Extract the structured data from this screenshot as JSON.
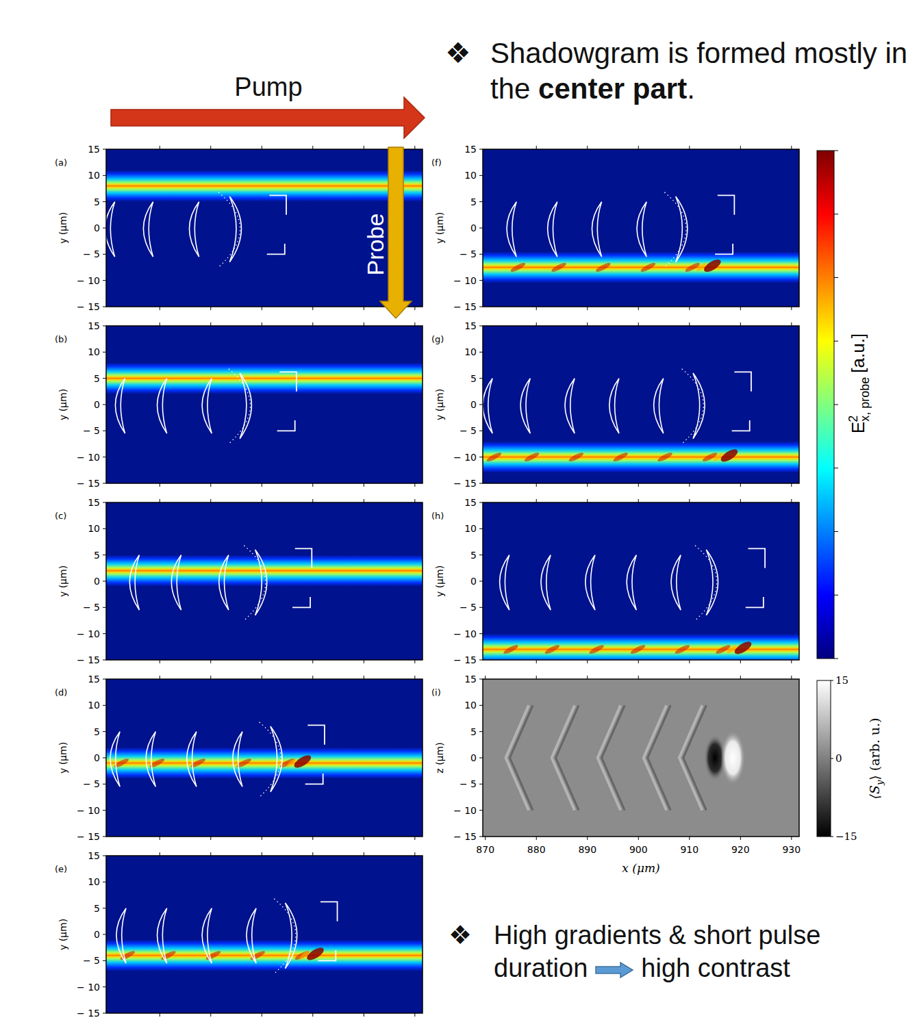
{
  "header": {
    "pump": "Pump",
    "probe": "Probe",
    "bullet": "❖",
    "note_top": {
      "text": "Shadowgram is formed mostly in the ",
      "bold": "center part",
      "end": "."
    },
    "note_bottom": {
      "text": "High gradients & short pulse duration",
      "result": "high contrast"
    }
  },
  "colorbar": {
    "symbol": "E",
    "subscript": "x",
    "superscript": "2",
    "suffix": ", probe",
    "unit": "[a.u.]"
  },
  "chart_data": [
    {
      "type": "heatmap",
      "panel_label": "(a)",
      "y_label": "y (μm)",
      "xlim": [
        869.5,
        931.5
      ],
      "ylim": [
        -15,
        15
      ],
      "xticks": [
        880,
        890,
        900,
        910,
        920,
        930
      ],
      "yticks": [
        {
          "value": -15,
          "label": "− 15"
        },
        {
          "value": -10,
          "label": "− 10"
        },
        {
          "value": -5,
          "label": "− 5"
        },
        0,
        5,
        10,
        15
      ],
      "tick_labels": "y",
      "probe_center": 8,
      "probe_width": 6,
      "wake_arcs": [
        870,
        877.5,
        886.5
      ],
      "bubble_x": 895.5,
      "front_x": 904.5
    },
    {
      "type": "heatmap",
      "panel_label": "(b)",
      "y_label": "y (μm)",
      "xlim": [
        869.5,
        931.5
      ],
      "ylim": [
        -15,
        15
      ],
      "xticks": [
        880,
        890,
        900,
        910,
        920,
        930
      ],
      "yticks": [
        {
          "value": -15,
          "label": "− 15"
        },
        {
          "value": -10,
          "label": "− 10"
        },
        {
          "value": -5,
          "label": "− 5"
        },
        0,
        5,
        10,
        15
      ],
      "tick_labels": "y",
      "probe_center": 5,
      "probe_width": 6,
      "wake_arcs": [
        872,
        880.2,
        889
      ],
      "bubble_x": 897.5,
      "front_x": 906.5
    },
    {
      "type": "heatmap",
      "panel_label": "(c)",
      "y_label": "y (μm)",
      "xlim": [
        869.5,
        931.5
      ],
      "ylim": [
        -15,
        15
      ],
      "xticks": [
        880,
        890,
        900,
        910,
        920,
        930
      ],
      "yticks": [
        {
          "value": -15,
          "label": "− 15"
        },
        {
          "value": -10,
          "label": "− 10"
        },
        {
          "value": -5,
          "label": "− 5"
        },
        0,
        5,
        10,
        15
      ],
      "tick_labels": "y",
      "probe_center": 2,
      "probe_width": 6,
      "wake_arcs": [
        874.8,
        883,
        892.3
      ],
      "bubble_x": 900.5,
      "front_x": 909.5
    },
    {
      "type": "heatmap",
      "panel_label": "(d)",
      "y_label": "y (μm)",
      "xlim": [
        869.5,
        931.5
      ],
      "ylim": [
        -15,
        15
      ],
      "xticks": [
        880,
        890,
        900,
        910,
        920,
        930
      ],
      "yticks": [
        {
          "value": -15,
          "label": "− 15"
        },
        {
          "value": -10,
          "label": "− 10"
        },
        {
          "value": -5,
          "label": "− 5"
        },
        0,
        5,
        10,
        15
      ],
      "tick_labels": "y",
      "probe_center": -1,
      "probe_width": 6,
      "wake_arcs": [
        871,
        878,
        886,
        895
      ],
      "bubble_x": 903.5,
      "front_x": 912
    },
    {
      "type": "heatmap",
      "panel_label": "(e)",
      "y_label": "y (μm)",
      "xlim": [
        869.5,
        931.5
      ],
      "ylim": [
        -15,
        15
      ],
      "xticks": [
        880,
        890,
        900,
        910,
        920,
        930
      ],
      "yticks": [
        {
          "value": -15,
          "label": "− 15"
        },
        {
          "value": -10,
          "label": "− 10"
        },
        {
          "value": -5,
          "label": "− 5"
        },
        0,
        5,
        10,
        15
      ],
      "tick_labels": "y",
      "probe_center": -4,
      "probe_width": 6,
      "wake_arcs": [
        872.2,
        880.2,
        889,
        897.7
      ],
      "bubble_x": 906.4,
      "front_x": 914.5
    },
    {
      "type": "heatmap",
      "panel_label": "(f)",
      "y_label": "y (μm)",
      "xlim": [
        869.5,
        931.5
      ],
      "ylim": [
        -15,
        15
      ],
      "xticks": [
        880,
        890,
        900,
        910,
        920,
        930
      ],
      "yticks": [
        {
          "value": -15,
          "label": "− 15"
        },
        {
          "value": -10,
          "label": "− 10"
        },
        {
          "value": -5,
          "label": "− 5"
        },
        0,
        5,
        10,
        15
      ],
      "tick_labels": "y",
      "probe_center": -7.5,
      "probe_width": 6,
      "wake_arcs": [
        874.9,
        882.9,
        891.6,
        900.4
      ],
      "bubble_x": 909.1,
      "front_x": 918.5
    },
    {
      "type": "heatmap",
      "panel_label": "(g)",
      "y_label": "y (μm)",
      "xlim": [
        869.5,
        931.5
      ],
      "ylim": [
        -15,
        15
      ],
      "xticks": [
        880,
        890,
        900,
        910,
        920,
        930
      ],
      "yticks": [
        {
          "value": -15,
          "label": "− 15"
        },
        {
          "value": -10,
          "label": "− 10"
        },
        {
          "value": -5,
          "label": "− 5"
        },
        0,
        5,
        10,
        15
      ],
      "tick_labels": "y",
      "probe_center": -10,
      "probe_width": 6,
      "wake_arcs": [
        870.2,
        877.6,
        886.3,
        895,
        903.7
      ],
      "bubble_x": 912.5,
      "front_x": 921.8
    },
    {
      "type": "heatmap",
      "panel_label": "(h)",
      "y_label": "y (μm)",
      "xlim": [
        869.5,
        931.5
      ],
      "ylim": [
        -15,
        15
      ],
      "xticks": [
        880,
        890,
        900,
        910,
        920,
        930
      ],
      "yticks": [
        {
          "value": -15,
          "label": "− 15"
        },
        {
          "value": -10,
          "label": "− 10"
        },
        {
          "value": -5,
          "label": "− 5"
        },
        0,
        5,
        10,
        15
      ],
      "tick_labels": "y",
      "probe_center": -13,
      "probe_width": 6,
      "wake_arcs": [
        873.5,
        881.6,
        890.3,
        898.4,
        907.1
      ],
      "bubble_x": 915.1,
      "front_x": 924.5
    },
    {
      "type": "image",
      "panel_label": "(i)",
      "x_label": "x (μm)",
      "y_label": "z (μm)",
      "xlim": [
        869.5,
        931.5
      ],
      "ylim": [
        -15,
        15
      ],
      "xticks": [
        870,
        880,
        890,
        900,
        910,
        920,
        930
      ],
      "yticks": [
        {
          "value": -15,
          "label": "− 15"
        },
        {
          "value": -10,
          "label": "− 10"
        },
        {
          "value": -5,
          "label": "− 5"
        },
        0,
        5,
        10,
        15
      ],
      "fringes": [
        876,
        885,
        894,
        903,
        910
      ],
      "bright_x": 918.5,
      "dark_x": 915,
      "colorbar": {
        "label": {
          "text": "⟨S",
          "subscript": "y",
          "after": "⟩",
          "unit": "(arb. u.)"
        },
        "lim": [
          -15,
          15
        ],
        "ticks": [
          {
            "value": -15,
            "label": "−15"
          },
          0,
          15
        ]
      }
    }
  ]
}
